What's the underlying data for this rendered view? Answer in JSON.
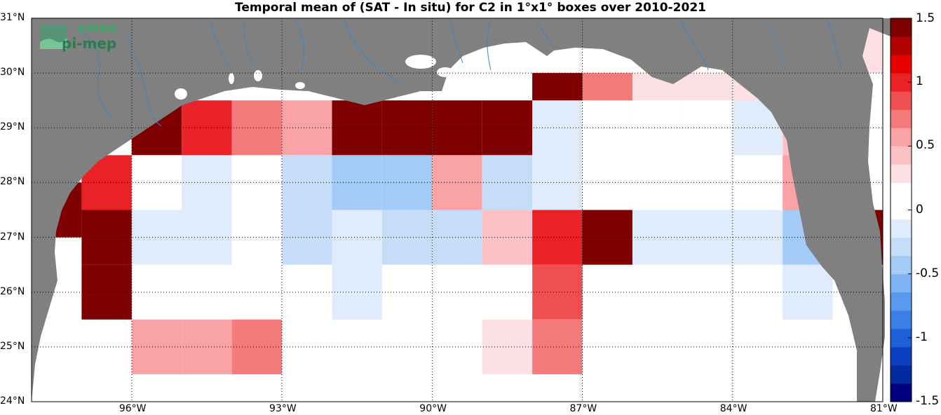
{
  "title": "Temporal mean of (SAT - In situ) for C2 in 1°x1° boxes over 2010-2021",
  "logo": {
    "line1": "smos",
    "line2": "pi-mep"
  },
  "lat_ticks": [
    "31°N",
    "30°N",
    "29°N",
    "28°N",
    "27°N",
    "26°N",
    "25°N",
    "24°N"
  ],
  "lon_ticks": [
    "96°W",
    "93°W",
    "90°W",
    "87°W",
    "84°W",
    "81°W"
  ],
  "colorbar_ticks": [
    "1.5",
    "1",
    "0.5",
    "0",
    "-0.5",
    "-1",
    "-1.5"
  ],
  "colors": {
    "land": "#808080",
    "ocean_zero": "#ffffff",
    "rivers": "#3a86c8",
    "scale": [
      "#00007f",
      "#002a9e",
      "#0a3fbf",
      "#1d5fd8",
      "#3a7ee6",
      "#5a9aee",
      "#7eb4f3",
      "#a3cbf6",
      "#c5ddf8",
      "#e0ecfb",
      "#ffffff",
      "#ffffff",
      "#fde0e3",
      "#fbc3c6",
      "#f9a3a6",
      "#f57a7c",
      "#f04f52",
      "#e82226",
      "#e60000",
      "#b30000",
      "#7f0000"
    ]
  },
  "chart_data": {
    "type": "heatmap",
    "xlabel": "",
    "ylabel": "",
    "lon_range": [
      -98.0,
      -81.0
    ],
    "lat_range": [
      24.0,
      31.0
    ],
    "color_range": [
      -1.5,
      1.5
    ],
    "cell_size_deg": 1,
    "cells": [
      {
        "lon": -81.5,
        "lat": 30.5,
        "value": 0.35
      },
      {
        "lon": -95.5,
        "lat": 29.0,
        "value": 1.5
      },
      {
        "lon": -94.5,
        "lat": 29.0,
        "value": 1.0
      },
      {
        "lon": -93.5,
        "lat": 29.0,
        "value": 0.7
      },
      {
        "lon": -92.5,
        "lat": 29.0,
        "value": 0.6
      },
      {
        "lon": -91.5,
        "lat": 29.0,
        "value": 1.5
      },
      {
        "lon": -90.5,
        "lat": 29.0,
        "value": 1.4
      },
      {
        "lon": -89.5,
        "lat": 29.0,
        "value": 1.4
      },
      {
        "lon": -88.5,
        "lat": 29.0,
        "value": 1.4
      },
      {
        "lon": -87.5,
        "lat": 29.5,
        "value": 1.4
      },
      {
        "lon": -86.5,
        "lat": 29.5,
        "value": 0.7
      },
      {
        "lon": -85.5,
        "lat": 29.5,
        "value": 0.3
      },
      {
        "lon": -84.5,
        "lat": 29.5,
        "value": 0.3
      },
      {
        "lon": -83.5,
        "lat": 29.5,
        "value": 0.3
      },
      {
        "lon": -87.5,
        "lat": 29.0,
        "value": -0.1
      },
      {
        "lon": -86.5,
        "lat": 29.0,
        "value": 0.0
      },
      {
        "lon": -85.5,
        "lat": 29.0,
        "value": 0.0
      },
      {
        "lon": -84.5,
        "lat": 29.0,
        "value": 0.0
      },
      {
        "lon": -83.5,
        "lat": 29.0,
        "value": -0.15
      },
      {
        "lon": -82.5,
        "lat": 29.0,
        "value": 0.45
      },
      {
        "lon": -96.5,
        "lat": 28.0,
        "value": 1.0
      },
      {
        "lon": -95.5,
        "lat": 28.0,
        "value": 0.15
      },
      {
        "lon": -94.5,
        "lat": 28.0,
        "value": -0.1
      },
      {
        "lon": -93.5,
        "lat": 28.0,
        "value": 0.0
      },
      {
        "lon": -92.5,
        "lat": 28.0,
        "value": -0.35
      },
      {
        "lon": -91.5,
        "lat": 28.0,
        "value": -0.45
      },
      {
        "lon": -90.5,
        "lat": 28.0,
        "value": -0.45
      },
      {
        "lon": -89.5,
        "lat": 28.0,
        "value": 0.6
      },
      {
        "lon": -88.5,
        "lat": 28.0,
        "value": -0.35
      },
      {
        "lon": -87.5,
        "lat": 28.0,
        "value": -0.1
      },
      {
        "lon": -86.5,
        "lat": 28.0,
        "value": 0.0
      },
      {
        "lon": -85.5,
        "lat": 28.0,
        "value": 0.0
      },
      {
        "lon": -84.5,
        "lat": 28.0,
        "value": 0.0
      },
      {
        "lon": -83.5,
        "lat": 28.0,
        "value": 0.15
      },
      {
        "lon": -82.5,
        "lat": 28.0,
        "value": 0.6
      },
      {
        "lon": -97.5,
        "lat": 27.5,
        "value": 1.5
      },
      {
        "lon": -96.5,
        "lat": 27.0,
        "value": 1.4
      },
      {
        "lon": -95.5,
        "lat": 27.0,
        "value": -0.1
      },
      {
        "lon": -94.5,
        "lat": 27.0,
        "value": -0.1
      },
      {
        "lon": -93.5,
        "lat": 27.0,
        "value": 0.0
      },
      {
        "lon": -92.5,
        "lat": 27.0,
        "value": -0.25
      },
      {
        "lon": -91.5,
        "lat": 27.0,
        "value": -0.1
      },
      {
        "lon": -90.5,
        "lat": 27.0,
        "value": -0.25
      },
      {
        "lon": -89.5,
        "lat": 27.0,
        "value": -0.25
      },
      {
        "lon": -88.5,
        "lat": 27.0,
        "value": 0.45
      },
      {
        "lon": -87.5,
        "lat": 27.0,
        "value": 1.0
      },
      {
        "lon": -86.5,
        "lat": 27.0,
        "value": 1.4
      },
      {
        "lon": -85.5,
        "lat": 27.0,
        "value": -0.1
      },
      {
        "lon": -84.5,
        "lat": 27.0,
        "value": -0.1
      },
      {
        "lon": -83.5,
        "lat": 27.0,
        "value": -0.1
      },
      {
        "lon": -82.5,
        "lat": 27.0,
        "value": -0.45
      },
      {
        "lon": -81.5,
        "lat": 27.0,
        "value": 1.5
      },
      {
        "lon": -96.5,
        "lat": 26.0,
        "value": 1.5
      },
      {
        "lon": -91.5,
        "lat": 26.0,
        "value": -0.1
      },
      {
        "lon": -87.5,
        "lat": 26.0,
        "value": 0.9
      },
      {
        "lon": -83.5,
        "lat": 26.0,
        "value": 0.15
      },
      {
        "lon": -82.5,
        "lat": 26.0,
        "value": -0.2
      },
      {
        "lon": -95.5,
        "lat": 25.0,
        "value": 0.55
      },
      {
        "lon": -94.5,
        "lat": 25.0,
        "value": 0.55
      },
      {
        "lon": -93.5,
        "lat": 25.0,
        "value": 0.75
      },
      {
        "lon": -88.5,
        "lat": 25.0,
        "value": 0.3
      },
      {
        "lon": -87.5,
        "lat": 25.0,
        "value": 0.7
      },
      {
        "lon": -86.5,
        "lat": 25.0,
        "value": 0.15
      },
      {
        "lon": -83.5,
        "lat": 25.0,
        "value": 0.15
      },
      {
        "lon": -81.5,
        "lat": 25.0,
        "value": 0.15
      }
    ]
  }
}
